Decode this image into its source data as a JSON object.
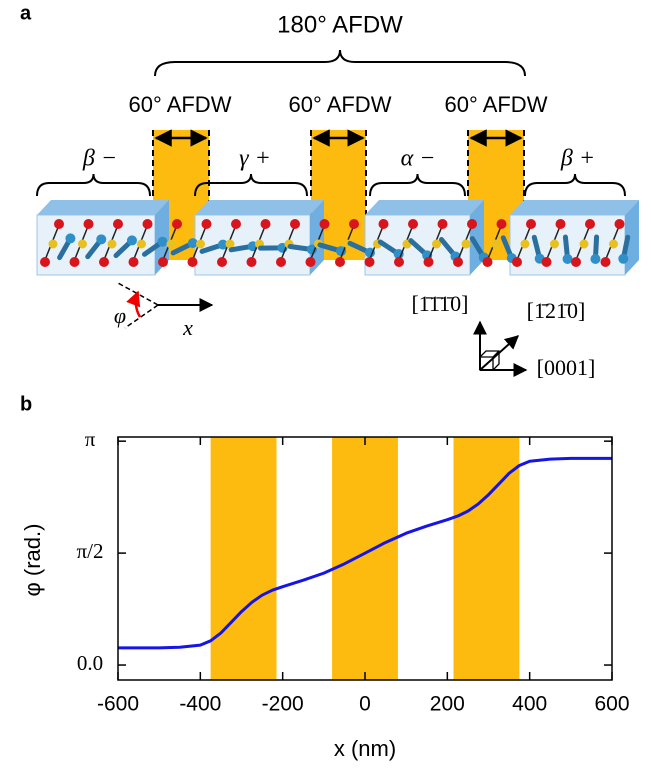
{
  "panel_a": {
    "label": "a",
    "top_label": "180° AFDW",
    "wall_labels": [
      "60° AFDW",
      "60° AFDW",
      "60° AFDW"
    ],
    "domain_labels": [
      "β −",
      "γ +",
      "α −",
      "β +"
    ],
    "angle_label": "φ",
    "axis_label": "x",
    "directions": [
      "[1̄1̄1̄0]",
      "[1̄21̄0]",
      "[0001]"
    ]
  },
  "chart_data": {
    "type": "line",
    "panel_label": "b",
    "x_label": "x (nm)",
    "y_label": "φ (rad.)",
    "x": [
      -600,
      -500,
      -450,
      -400,
      -375,
      -350,
      -325,
      -300,
      -275,
      -250,
      -225,
      -200,
      -150,
      -100,
      -50,
      0,
      50,
      100,
      150,
      200,
      225,
      250,
      275,
      300,
      325,
      350,
      375,
      400,
      450,
      500,
      600
    ],
    "series": [
      {
        "color": "#1515e6",
        "values": [
          0.24,
          0.24,
          0.25,
          0.28,
          0.34,
          0.45,
          0.6,
          0.75,
          0.88,
          0.98,
          1.05,
          1.1,
          1.19,
          1.29,
          1.42,
          1.57,
          1.72,
          1.85,
          1.95,
          2.04,
          2.09,
          2.16,
          2.26,
          2.39,
          2.54,
          2.69,
          2.8,
          2.86,
          2.89,
          2.9,
          2.9
        ]
      }
    ],
    "bands": [
      [
        -375,
        -215
      ],
      [
        -80,
        80
      ],
      [
        215,
        375
      ]
    ],
    "band_color": "#fdbb0f",
    "xlim": [
      -600,
      600
    ],
    "xticks": [
      -600,
      -400,
      -200,
      0,
      200,
      400,
      600
    ],
    "ylim": [
      -0.21,
      3.2
    ],
    "yticks": [
      {
        "value": 3.14159,
        "label": "π"
      },
      {
        "value": 1.5708,
        "label": "π/2"
      },
      {
        "value": 0,
        "label": "0.0"
      }
    ]
  }
}
